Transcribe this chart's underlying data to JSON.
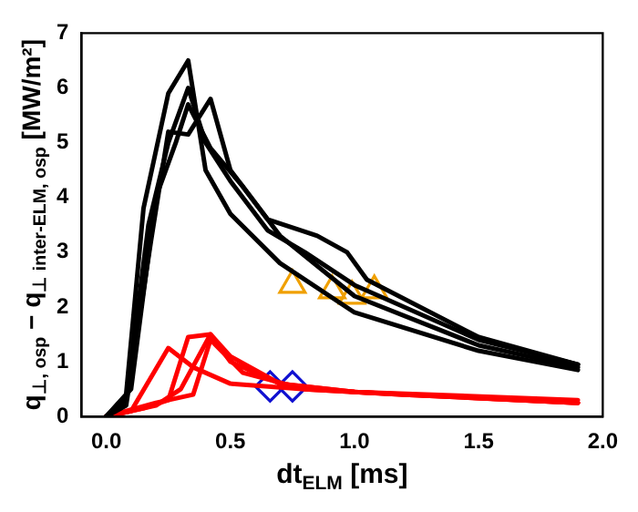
{
  "chart_data": {
    "type": "line",
    "xlabel": "dt$_{ELM}$ [ms]",
    "ylabel": "q$_{⊥, osp}$ − q$_{⊥ inter-ELM, osp}$ [MW/m²]",
    "xlim": [
      -0.1,
      2.0
    ],
    "xticks": [
      {
        "value": 0,
        "label": "0.0"
      },
      0.5,
      {
        "value": 1,
        "label": "1.0"
      },
      1.5,
      {
        "value": 2,
        "label": "2.0"
      }
    ],
    "ylim": [
      0,
      7
    ],
    "yticks": [
      0,
      1,
      2,
      3,
      4,
      5,
      6,
      7
    ],
    "grid": false,
    "legend": false,
    "marker": "none",
    "line_style": "solid",
    "series": [
      {
        "color": "#000000",
        "x": [
          0,
          0.08,
          0.15,
          0.25,
          0.33,
          0.4,
          0.5,
          0.7,
          1.0,
          1.5,
          1.9
        ],
        "values": [
          0,
          0.4,
          3.8,
          5.9,
          6.5,
          4.5,
          3.7,
          2.8,
          1.9,
          1.2,
          0.85
        ]
      },
      {
        "color": "#000000",
        "x": [
          0,
          0.08,
          0.17,
          0.25,
          0.33,
          0.4,
          0.5,
          0.65,
          0.8,
          1.0,
          1.5,
          1.9
        ],
        "values": [
          0,
          0.3,
          3.5,
          5.0,
          6.0,
          5.0,
          4.3,
          3.4,
          3.0,
          2.4,
          1.4,
          0.95
        ]
      },
      {
        "color": "#000000",
        "x": [
          0,
          0.08,
          0.18,
          0.25,
          0.33,
          0.42,
          0.5,
          0.65,
          0.85,
          0.97,
          1.05,
          1.5,
          1.9
        ],
        "values": [
          0,
          0.2,
          3.2,
          5.2,
          5.15,
          5.8,
          4.5,
          3.6,
          3.3,
          3.0,
          2.5,
          1.45,
          0.95
        ]
      },
      {
        "color": "#000000",
        "x": [
          0,
          0.1,
          0.2,
          0.28,
          0.33,
          0.42,
          0.55,
          0.7,
          1.0,
          1.5,
          1.9
        ],
        "values": [
          0,
          0.5,
          4.0,
          5.0,
          5.7,
          4.9,
          4.2,
          3.3,
          2.2,
          1.3,
          0.9
        ]
      },
      {
        "color": "#ff0000",
        "x": [
          0,
          0.1,
          0.25,
          0.35,
          0.5,
          0.8,
          1.2,
          1.9
        ],
        "values": [
          0,
          0.1,
          1.25,
          0.9,
          0.6,
          0.5,
          0.4,
          0.25
        ]
      },
      {
        "color": "#ff0000",
        "x": [
          0,
          0.15,
          0.25,
          0.33,
          0.42,
          0.5,
          0.7,
          1.0,
          1.9
        ],
        "values": [
          0,
          0.15,
          0.3,
          1.45,
          1.5,
          1.0,
          0.6,
          0.45,
          0.25
        ]
      },
      {
        "color": "#ff0000",
        "x": [
          0,
          0.2,
          0.3,
          0.42,
          0.5,
          0.7,
          1.0,
          1.9
        ],
        "values": [
          0,
          0.2,
          0.5,
          1.5,
          1.1,
          0.6,
          0.45,
          0.3
        ]
      },
      {
        "color": "#ff0000",
        "x": [
          0,
          0.2,
          0.35,
          0.42,
          0.55,
          0.8,
          1.2,
          1.9
        ],
        "values": [
          0,
          0.25,
          0.4,
          1.4,
          0.8,
          0.5,
          0.4,
          0.25
        ]
      },
      {
        "type": "scatter",
        "marker": "triangle",
        "color": "#f0a000",
        "x": [
          0.75,
          0.91,
          0.99,
          1.08
        ],
        "values": [
          2.4,
          2.3,
          2.2,
          2.3
        ]
      },
      {
        "type": "scatter",
        "marker": "diamond",
        "color": "#1010d0",
        "x": [
          0.66,
          0.75
        ],
        "values": [
          0.55,
          0.55
        ]
      }
    ]
  }
}
